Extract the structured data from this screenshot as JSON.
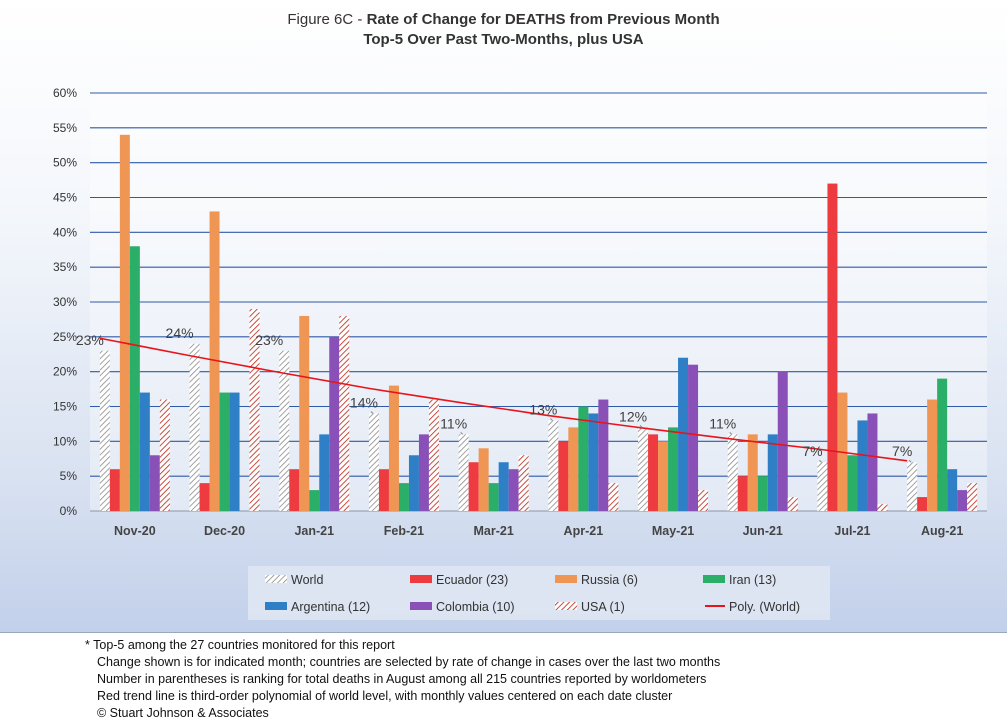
{
  "title": {
    "prefix": "Figure 6C - ",
    "bold_line1": "Rate of Change for DEATHS from Previous Month",
    "line2": "Top-5 Over Past Two-Months, plus USA"
  },
  "chart_data": {
    "type": "bar",
    "categories": [
      "Nov-20",
      "Dec-20",
      "Jan-21",
      "Feb-21",
      "Mar-21",
      "Apr-21",
      "May-21",
      "Jun-21",
      "Jul-21",
      "Aug-21"
    ],
    "ylim": [
      0,
      60
    ],
    "yticks": [
      "0%",
      "5%",
      "10%",
      "15%",
      "20%",
      "25%",
      "30%",
      "35%",
      "40%",
      "45%",
      "50%",
      "55%",
      "60%"
    ],
    "series": [
      {
        "name": "World",
        "color": "#d9d9d9",
        "pattern": "diagonal-gray",
        "values": [
          23,
          24,
          23,
          14,
          11,
          13,
          12,
          11,
          7,
          7
        ]
      },
      {
        "name": "Ecuador (23)",
        "color": "#ee3b3f",
        "values": [
          6,
          4,
          6,
          6,
          7,
          10,
          11,
          5,
          47,
          2
        ]
      },
      {
        "name": "Russia (6)",
        "color": "#ef9655",
        "values": [
          54,
          43,
          28,
          18,
          9,
          12,
          10,
          11,
          17,
          16
        ]
      },
      {
        "name": "Iran (13)",
        "color": "#2aae68",
        "values": [
          38,
          17,
          3,
          4,
          4,
          15,
          12,
          5,
          8,
          19
        ]
      },
      {
        "name": "Argentina (12)",
        "color": "#2f7fc7",
        "values": [
          17,
          17,
          11,
          8,
          7,
          14,
          22,
          11,
          13,
          6
        ]
      },
      {
        "name": "Colombia (10)",
        "color": "#8951b8",
        "values": [
          8,
          null,
          25,
          11,
          6,
          16,
          21,
          20,
          14,
          3
        ]
      },
      {
        "name": "USA (1)",
        "color": "#c0392b",
        "pattern": "diagonal-red",
        "values": [
          16,
          29,
          28,
          16,
          8,
          4,
          3,
          2,
          1,
          4
        ]
      }
    ],
    "data_labels": [
      "23%",
      "24%",
      "23%",
      "14%",
      "11%",
      "13%",
      "12%",
      "11%",
      "7%",
      "7%"
    ],
    "trendline": {
      "name": "Poly. (World)",
      "color": "#e8141b",
      "values": [
        24.8,
        22.3,
        19.9,
        17.6,
        15.6,
        13.7,
        12.0,
        10.4,
        8.9,
        7.2
      ]
    },
    "legend": {
      "position": "bottom",
      "rows": [
        [
          "World",
          "Ecuador (23)",
          "Russia (6)",
          "Iran (13)"
        ],
        [
          "Argentina (12)",
          "Colombia (10)",
          "USA (1)",
          "Poly. (World)"
        ]
      ]
    }
  },
  "notes": [
    "* Top-5 among the 27 countries monitored for this report",
    "Change shown is for indicated month; countries are selected by rate of change in cases over the last two months",
    "Number in parentheses is ranking for total deaths in August among all 215 countries reported by worldometers",
    "Red trend line is third-order polynomial of world level, with monthly values centered on each date cluster",
    "© Stuart Johnson & Associates"
  ]
}
